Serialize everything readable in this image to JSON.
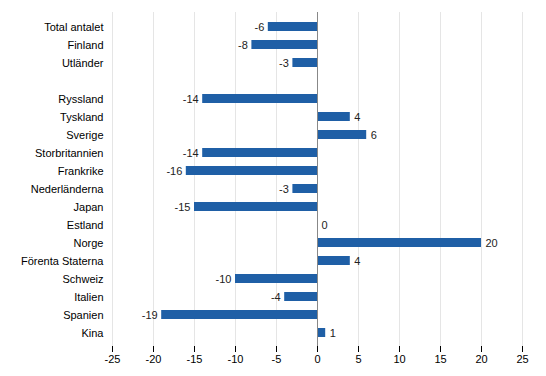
{
  "chart_data": {
    "type": "bar",
    "orientation": "horizontal",
    "categories": [
      "Kina",
      "Spanien",
      "Italien",
      "Schweiz",
      "Förenta Staterna",
      "Norge",
      "Estland",
      "Japan",
      "Nederländerna",
      "Frankrike",
      "Storbritannien",
      "Sverige",
      "Tyskland",
      "Ryssland",
      null,
      "Utländer",
      "Finland",
      "Total antalet"
    ],
    "values": [
      1,
      -19,
      -4,
      -10,
      4,
      20,
      0,
      -15,
      -3,
      -16,
      -14,
      6,
      4,
      -14,
      null,
      -3,
      -8,
      -6
    ],
    "color": "#1F5FA6",
    "xlim": [
      -25,
      25
    ],
    "xticks": [
      -25,
      -20,
      -15,
      -10,
      -5,
      0,
      5,
      10,
      15,
      20,
      25
    ],
    "grid": true,
    "data_labels": true
  }
}
